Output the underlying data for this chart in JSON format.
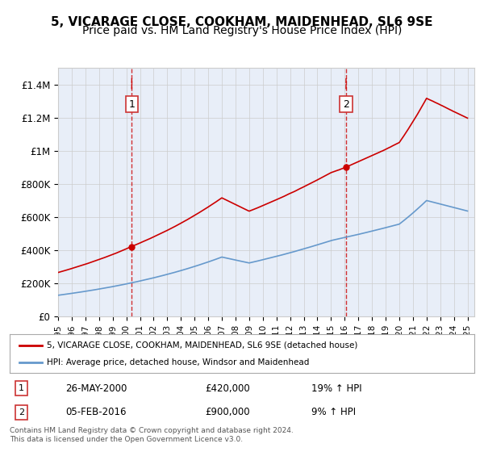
{
  "title": "5, VICARAGE CLOSE, COOKHAM, MAIDENHEAD, SL6 9SE",
  "subtitle": "Price paid vs. HM Land Registry's House Price Index (HPI)",
  "xlabel": "",
  "ylabel": "",
  "ylim": [
    0,
    1500000
  ],
  "yticks": [
    0,
    200000,
    400000,
    600000,
    800000,
    1000000,
    1200000,
    1400000
  ],
  "ytick_labels": [
    "£0",
    "£200K",
    "£400K",
    "£600K",
    "£800K",
    "£1M",
    "£1.2M",
    "£1.4M"
  ],
  "background_color": "#e8eef8",
  "plot_bg_color": "#e8eef8",
  "red_color": "#cc0000",
  "blue_color": "#6699cc",
  "sale1_date_idx": 5.4,
  "sale1_price": 420000,
  "sale1_label": "1",
  "sale2_date_idx": 21.1,
  "sale2_price": 900000,
  "sale2_label": "2",
  "legend_line1": "5, VICARAGE CLOSE, COOKHAM, MAIDENHEAD, SL6 9SE (detached house)",
  "legend_line2": "HPI: Average price, detached house, Windsor and Maidenhead",
  "annotation1_num": "1",
  "annotation1_date": "26-MAY-2000",
  "annotation1_price": "£420,000",
  "annotation1_hpi": "19% ↑ HPI",
  "annotation2_num": "2",
  "annotation2_date": "05-FEB-2016",
  "annotation2_price": "£900,000",
  "annotation2_hpi": "9% ↑ HPI",
  "footer": "Contains HM Land Registry data © Crown copyright and database right 2024.\nThis data is licensed under the Open Government Licence v3.0.",
  "title_fontsize": 11,
  "subtitle_fontsize": 10
}
